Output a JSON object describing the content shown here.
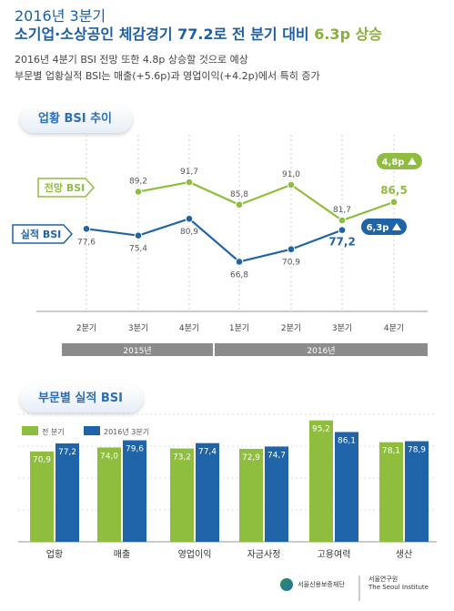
{
  "header": {
    "line1": "2016년 3분기",
    "line2_pre": "소기업·소상공인 체감경기 77.2로 전 분기 대비 ",
    "line2_hl": "6.3p 상승",
    "sub1": "2016년 4분기 BSI 전망 또한 4.8p 상승할 것으로 예상",
    "sub2": "부문별 업황실적 BSI는 매출(+5.6p)과 영업이익(+4.2p)에서 특히 증가"
  },
  "colors": {
    "green": "#8fbe3f",
    "blue": "#1f63a8",
    "title": "#1c5fa5",
    "yeargray": "#8c8c8c"
  },
  "chart_data": [
    {
      "type": "line",
      "title": "업황 BSI 추이",
      "categories": [
        "2분기",
        "3분기",
        "4분기",
        "1분기",
        "2분기",
        "3분기",
        "4분기"
      ],
      "year_groups": [
        {
          "label": "2015년",
          "span": [
            0,
            2
          ]
        },
        {
          "label": "2016년",
          "span": [
            3,
            6
          ]
        }
      ],
      "series": [
        {
          "name": "전망 BSI",
          "values": [
            null,
            89.2,
            91.7,
            85.8,
            91.0,
            81.7,
            86.5
          ],
          "labels": [
            "",
            "89,2",
            "91,7",
            "85,8",
            "91,0",
            "81,7",
            "86,5"
          ]
        },
        {
          "name": "실적 BSI",
          "values": [
            77.6,
            75.4,
            80.9,
            66.8,
            70.9,
            77.2,
            null
          ],
          "labels": [
            "77,6",
            "75,4",
            "80,9",
            "66,8",
            "70,9",
            "77,2",
            ""
          ]
        }
      ],
      "badges": {
        "forecast": "4,8p",
        "actual": "6,3p"
      },
      "grid": "vertical-dashed"
    },
    {
      "type": "bar",
      "title": "부문별 실적 BSI",
      "categories": [
        "업황",
        "매출",
        "영업이익",
        "자금사정",
        "고용여력",
        "생산"
      ],
      "series": [
        {
          "name": "전 분기",
          "values": [
            70.9,
            74.0,
            73.2,
            72.9,
            95.2,
            78.1
          ],
          "labels": [
            "70,9",
            "74,0",
            "73,2",
            "72,9",
            "95,2",
            "78,1"
          ]
        },
        {
          "name": "2016년 3분기",
          "values": [
            77.2,
            79.6,
            77.4,
            74.7,
            86.1,
            78.9
          ],
          "labels": [
            "77,2",
            "79,6",
            "77,4",
            "74,7",
            "86,1",
            "78,9"
          ]
        }
      ],
      "legend": "top-left",
      "grid": "horizontal-dashed"
    }
  ],
  "footer": {
    "logo1": "서울신용보증재단",
    "logo2a": "서울연구원",
    "logo2b": "The Seoul Institute"
  }
}
